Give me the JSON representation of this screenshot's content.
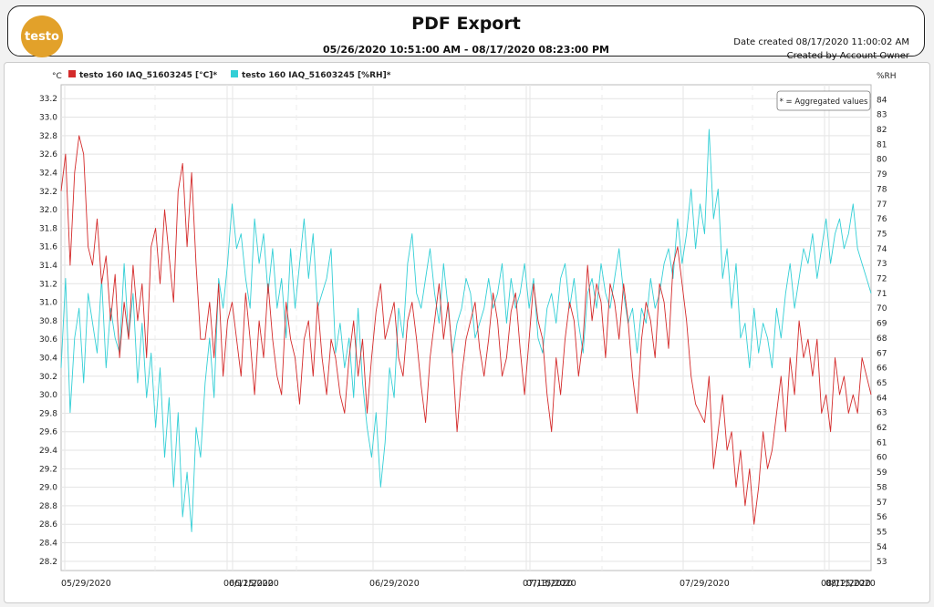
{
  "header": {
    "logo_text": "testo",
    "title": "PDF Export",
    "range": "05/26/2020 10:51:00 AM - 08/17/2020 08:23:00 PM",
    "date_created": "Date created 08/17/2020 11:00:02 AM",
    "created_by": "Created by Account Owner"
  },
  "chart_data": {
    "type": "line",
    "left_axis_unit": "°C",
    "right_axis_unit": "%RH",
    "left_ylim": [
      28.1,
      33.35
    ],
    "right_ylim": [
      52.4,
      85
    ],
    "left_ticks": [
      "33.2",
      "33.0",
      "32.8",
      "32.6",
      "32.4",
      "32.2",
      "32.0",
      "31.8",
      "31.6",
      "31.4",
      "31.2",
      "31.0",
      "30.8",
      "30.6",
      "30.4",
      "30.2",
      "30.0",
      "29.8",
      "29.6",
      "29.4",
      "29.2",
      "29.0",
      "28.8",
      "28.6",
      "28.4",
      "28.2"
    ],
    "right_ticks": [
      "84",
      "83",
      "82",
      "81",
      "80",
      "79",
      "78",
      "77",
      "76",
      "75",
      "74",
      "73",
      "72",
      "71",
      "70",
      "69",
      "68",
      "67",
      "66",
      "65",
      "64",
      "63",
      "62",
      "61",
      "60",
      "59",
      "58",
      "57",
      "56",
      "55",
      "54",
      "53"
    ],
    "x_labels": [
      "05/29/2020",
      "06/12/2020",
      "06/15/2020",
      "06/29/2020",
      "07/13/2020",
      "07/15/2020",
      "07/29/2020",
      "08/12/2020",
      "08/15/2020"
    ],
    "annotation": "* = Aggregated values",
    "series": [
      {
        "name": "testo 160 IAQ_51603245 [°C]*",
        "axis": "left",
        "color": "#d42b2b",
        "values": [
          32.2,
          32.6,
          31.4,
          32.4,
          32.8,
          32.6,
          31.6,
          31.4,
          31.9,
          31.2,
          31.5,
          30.8,
          31.3,
          30.4,
          31.0,
          30.6,
          31.4,
          30.8,
          31.2,
          30.4,
          31.6,
          31.8,
          31.2,
          32.0,
          31.5,
          31.0,
          32.2,
          32.5,
          31.6,
          32.4,
          31.4,
          30.6,
          30.6,
          31.0,
          30.4,
          31.2,
          30.2,
          30.8,
          31.0,
          30.6,
          30.2,
          31.1,
          30.6,
          30.0,
          30.8,
          30.4,
          31.2,
          30.6,
          30.2,
          30.0,
          31.0,
          30.6,
          30.4,
          29.9,
          30.6,
          30.8,
          30.2,
          31.0,
          30.4,
          30.0,
          30.6,
          30.4,
          30.0,
          29.8,
          30.4,
          30.8,
          30.2,
          30.6,
          29.8,
          30.4,
          30.9,
          31.2,
          30.6,
          30.8,
          31.0,
          30.4,
          30.2,
          30.8,
          31.0,
          30.6,
          30.1,
          29.7,
          30.4,
          30.8,
          31.2,
          30.6,
          31.0,
          30.4,
          29.6,
          30.2,
          30.6,
          30.8,
          31.0,
          30.5,
          30.2,
          30.6,
          31.1,
          30.8,
          30.2,
          30.4,
          30.9,
          31.1,
          30.5,
          30.0,
          30.6,
          31.2,
          30.8,
          30.6,
          30.0,
          29.6,
          30.4,
          30.0,
          30.6,
          31.0,
          30.8,
          30.2,
          30.6,
          31.4,
          30.8,
          31.2,
          31.0,
          30.4,
          31.2,
          31.0,
          30.6,
          31.2,
          30.8,
          30.2,
          29.8,
          30.6,
          31.0,
          30.8,
          30.4,
          31.2,
          31.0,
          30.5,
          31.4,
          31.6,
          31.2,
          30.8,
          30.2,
          29.9,
          29.8,
          29.7,
          30.2,
          29.2,
          29.6,
          30.0,
          29.4,
          29.6,
          29.0,
          29.4,
          28.8,
          29.2,
          28.6,
          29.0,
          29.6,
          29.2,
          29.4,
          29.8,
          30.2,
          29.6,
          30.4,
          30.0,
          30.8,
          30.4,
          30.6,
          30.2,
          30.6,
          29.8,
          30.0,
          29.6,
          30.4,
          30.0,
          30.2,
          29.8,
          30.0,
          29.8,
          30.4,
          30.2,
          30.0
        ]
      },
      {
        "name": "testo 160 IAQ_51603245 [%RH]*",
        "axis": "right",
        "color": "#33cfd6",
        "values": [
          66,
          72,
          63,
          68,
          70,
          65,
          71,
          69,
          67,
          72,
          66,
          70,
          68,
          67,
          73,
          68,
          71,
          65,
          69,
          64,
          67,
          62,
          66,
          60,
          64,
          58,
          63,
          56,
          59,
          55,
          62,
          60,
          65,
          68,
          64,
          72,
          70,
          73,
          77,
          74,
          75,
          72,
          70,
          76,
          73,
          75,
          71,
          74,
          70,
          72,
          68,
          74,
          70,
          73,
          76,
          72,
          75,
          70,
          71,
          72,
          74,
          67,
          69,
          66,
          68,
          64,
          70,
          65,
          62,
          60,
          63,
          58,
          61,
          66,
          64,
          70,
          68,
          73,
          75,
          71,
          70,
          72,
          74,
          71,
          69,
          73,
          70,
          67,
          69,
          70,
          72,
          71,
          68,
          69,
          70,
          72,
          70,
          71,
          73,
          69,
          72,
          70,
          71,
          73,
          70,
          72,
          68,
          67,
          70,
          71,
          69,
          72,
          73,
          70,
          72,
          69,
          67,
          71,
          72,
          70,
          73,
          71,
          70,
          72,
          74,
          71,
          69,
          70,
          67,
          70,
          69,
          72,
          70,
          71,
          73,
          74,
          72,
          76,
          73,
          75,
          78,
          74,
          77,
          75,
          82,
          76,
          78,
          72,
          74,
          70,
          73,
          68,
          69,
          66,
          70,
          67,
          69,
          68,
          66,
          70,
          68,
          71,
          73,
          70,
          72,
          74,
          73,
          75,
          72,
          74,
          76,
          73,
          75,
          76,
          74,
          75,
          77,
          74,
          73,
          72,
          71
        ]
      }
    ]
  }
}
